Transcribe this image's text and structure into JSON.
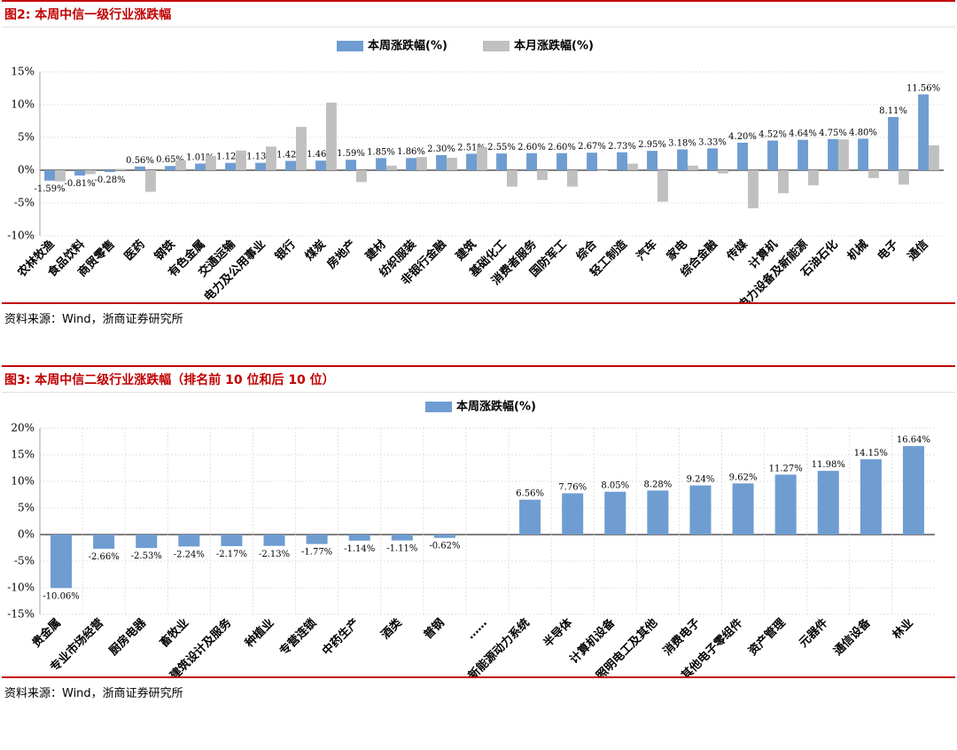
{
  "chart1": {
    "title": "图2:   本周中信一级行业涨跌幅",
    "source": "资料来源：Wind，浙商证券研究所",
    "chart_data": {
      "type": "bar",
      "colors": [
        "#6F9DD2",
        "#C0C0C0"
      ],
      "ylim": [
        -10,
        15
      ],
      "y_ticks": [
        -10,
        -5,
        0,
        5,
        10,
        15
      ],
      "y_tick_labels": [
        "-10%",
        "-5%",
        "0%",
        "5%",
        "10%",
        "15%"
      ],
      "categories": [
        "农林牧渔",
        "食品饮料",
        "商贸零售",
        "医药",
        "钢铁",
        "有色金属",
        "交通运输",
        "电力及公用事业",
        "银行",
        "煤炭",
        "房地产",
        "建材",
        "纺织服装",
        "非银行金融",
        "建筑",
        "基础化工",
        "消费者服务",
        "国防军工",
        "综合",
        "轻工制造",
        "汽车",
        "家电",
        "综合金融",
        "传媒",
        "计算机",
        "电力设备及新能源",
        "石油石化",
        "机械",
        "电子",
        "通信"
      ],
      "series": [
        {
          "name": "本周涨跌幅(%)",
          "values": [
            -1.59,
            -0.81,
            -0.28,
            0.56,
            0.65,
            1.01,
            1.12,
            1.13,
            1.42,
            1.46,
            1.59,
            1.85,
            1.86,
            2.3,
            2.51,
            2.55,
            2.6,
            2.6,
            2.67,
            2.73,
            2.95,
            3.18,
            3.33,
            4.2,
            4.52,
            4.64,
            4.75,
            4.8,
            8.11,
            11.56
          ],
          "labels": [
            "-1.59%",
            "-0.81%",
            "-0.28%",
            "0.56%",
            "0.65%",
            "1.01%",
            "1.12%",
            "1.13%",
            "1.42%",
            "1.46%",
            "1.59%",
            "1.85%",
            "1.86%",
            "2.30%",
            "2.51%",
            "2.55%",
            "2.60%",
            "2.60%",
            "2.67%",
            "2.73%",
            "2.95%",
            "3.18%",
            "3.33%",
            "4.20%",
            "4.52%",
            "4.64%",
            "4.75%",
            "4.80%",
            "8.11%",
            "11.56%"
          ]
        },
        {
          "name": "本月涨跌幅(%)",
          "values": [
            -1.7,
            -0.6,
            0.2,
            -3.3,
            1.5,
            2.2,
            3.0,
            3.6,
            6.6,
            10.3,
            -1.8,
            0.7,
            2.0,
            1.9,
            3.5,
            -2.5,
            -1.5,
            -2.5,
            -0.1,
            1.0,
            -4.8,
            0.7,
            -0.5,
            -5.8,
            -3.5,
            -2.3,
            4.7,
            -1.2,
            -2.2,
            3.8
          ]
        }
      ]
    }
  },
  "chart2": {
    "title": "图3:   本周中信二级行业涨跌幅（排名前 10 位和后 10 位）",
    "source": "资料来源：Wind，浙商证券研究所",
    "chart_data": {
      "type": "bar",
      "colors": [
        "#6F9DD2"
      ],
      "ylim": [
        -15,
        20
      ],
      "y_ticks": [
        -15,
        -10,
        -5,
        0,
        5,
        10,
        15,
        20
      ],
      "y_tick_labels": [
        "-15%",
        "-10%",
        "-5%",
        "0%",
        "5%",
        "10%",
        "15%",
        "20%"
      ],
      "categories": [
        "贵金属",
        "专业市场经营",
        "厨房电器",
        "畜牧业",
        "建筑设计及服务",
        "种植业",
        "专营连锁",
        "中药生产",
        "酒类",
        "普钢",
        "……",
        "新能源动力系统",
        "半导体",
        "计算机设备",
        "照明电工及其他",
        "消费电子",
        "其他电子零组件",
        "资产管理",
        "元器件",
        "通信设备",
        "林业"
      ],
      "series": [
        {
          "name": "本周涨跌幅(%)",
          "values": [
            -10.06,
            -2.66,
            -2.53,
            -2.24,
            -2.17,
            -2.13,
            -1.77,
            -1.14,
            -1.11,
            -0.62,
            null,
            6.56,
            7.76,
            8.05,
            8.28,
            9.24,
            9.62,
            11.27,
            11.98,
            14.15,
            16.64
          ],
          "labels": [
            "-10.06%",
            "-2.66%",
            "-2.53%",
            "-2.24%",
            "-2.17%",
            "-2.13%",
            "-1.77%",
            "-1.14%",
            "-1.11%",
            "-0.62%",
            "",
            "6.56%",
            "7.76%",
            "8.05%",
            "8.28%",
            "9.24%",
            "9.62%",
            "11.27%",
            "11.98%",
            "14.15%",
            "16.64%"
          ]
        }
      ]
    }
  }
}
